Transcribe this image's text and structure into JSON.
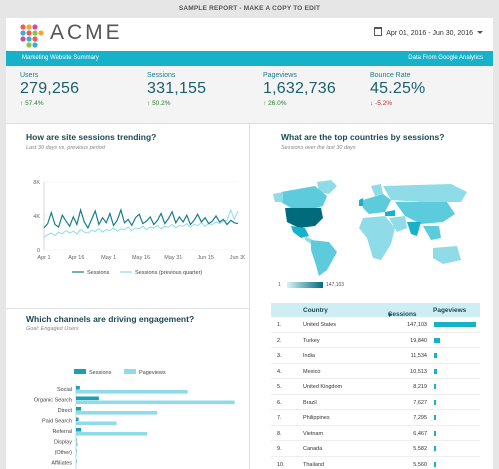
{
  "banner": "SAMPLE REPORT - MAKE A COPY TO EDIT",
  "header": {
    "logo_text": "ACME",
    "date_range": "Apr 01, 2016 - Jun 30, 2016"
  },
  "subheader": {
    "left": "Marketing Website Summary",
    "right": "Data From Google Analytics"
  },
  "kpis": [
    {
      "label": "Users",
      "value": "279,256",
      "change": "57.4%",
      "direction": "up"
    },
    {
      "label": "Sessions",
      "value": "331,155",
      "change": "50.2%",
      "direction": "up"
    },
    {
      "label": "Pageviews",
      "value": "1,632,736",
      "change": "26.0%",
      "direction": "up"
    },
    {
      "label": "Bounce Rate",
      "value": "45.25%",
      "change": "-5.2%",
      "direction": "down"
    }
  ],
  "colors": {
    "accent": "#17b2c9",
    "accent_light": "#8fdce8",
    "dark": "#1a4a55"
  },
  "sessions_trend": {
    "title": "How are site sessions trending?",
    "subtitle": "Last 30 days vs. previous period",
    "legend": [
      "Sessions",
      "Sessions (previous quarter)"
    ]
  },
  "countries": {
    "title": "What are the top countries by sessions?",
    "subtitle": "Sessions over the last 30 days",
    "scale_min": "1",
    "scale_max": "147,103"
  },
  "channels": {
    "title": "Which channels are driving engagement?",
    "subtitle": "Goal: Engaged Users",
    "legend": [
      "Sessions",
      "Pageviews"
    ]
  },
  "table": {
    "headers": [
      "Country",
      "Sessions",
      "Pageviews"
    ],
    "sort_indicator": "▾",
    "rows": [
      {
        "rank": "1.",
        "country": "United States",
        "sessions": "147,103",
        "pv": 147103
      },
      {
        "rank": "2.",
        "country": "Turkey",
        "sessions": "19,840",
        "pv": 19840
      },
      {
        "rank": "3.",
        "country": "India",
        "sessions": "11,534",
        "pv": 11534
      },
      {
        "rank": "4.",
        "country": "Mexico",
        "sessions": "10,513",
        "pv": 10513
      },
      {
        "rank": "5.",
        "country": "United Kingdom",
        "sessions": "8,219",
        "pv": 8219
      },
      {
        "rank": "6.",
        "country": "Brazil",
        "sessions": "7,627",
        "pv": 7627
      },
      {
        "rank": "7.",
        "country": "Philippines",
        "sessions": "7,295",
        "pv": 7295
      },
      {
        "rank": "8.",
        "country": "Vietnam",
        "sessions": "6,467",
        "pv": 6467
      },
      {
        "rank": "9.",
        "country": "Canada",
        "sessions": "5,582",
        "pv": 5582
      },
      {
        "rank": "10.",
        "country": "Thailand",
        "sessions": "5,560",
        "pv": 5560
      }
    ]
  },
  "chart_data": [
    {
      "type": "line",
      "title": "How are site sessions trending?",
      "x_ticks": [
        "Apr 1",
        "Apr 16",
        "May 1",
        "May 16",
        "May 31",
        "Jun 15",
        "Jun 30"
      ],
      "y_ticks": [
        "0",
        "4K",
        "8K"
      ],
      "ylim": [
        0,
        8000
      ],
      "series": [
        {
          "name": "Sessions",
          "values": [
            2600,
            3100,
            4400,
            3000,
            2700,
            4100,
            3400,
            2800,
            3900,
            3000,
            4700,
            3300,
            2600,
            3600,
            4600,
            3000,
            3800,
            3200,
            4300,
            2900,
            3500,
            4700,
            3200,
            3600,
            2900,
            3800,
            4200,
            3100,
            3400,
            3900,
            3000,
            3500,
            4300,
            3100,
            3700,
            4500,
            3200,
            3900,
            3300,
            4100,
            3000,
            3500,
            4200,
            3300,
            3800,
            3100,
            3400,
            4000,
            3300,
            3600,
            3000,
            3500,
            3200,
            3100
          ]
        },
        {
          "name": "Sessions (previous quarter)",
          "values": [
            1500,
            1800,
            2000,
            1700,
            2100,
            1900,
            2300,
            2000,
            2200,
            1900,
            2400,
            2100,
            2000,
            2300,
            2200,
            2500,
            2100,
            2400,
            2300,
            2600,
            2200,
            2500,
            2400,
            2700,
            2300,
            2600,
            2500,
            2800,
            2400,
            2700,
            2600,
            2900,
            2500,
            2800,
            2700,
            3000,
            2600,
            2900,
            2800,
            3100,
            2700,
            3000,
            2900,
            3200,
            2800,
            3100,
            3000,
            3300,
            3100,
            3400,
            3500,
            4700,
            3600,
            4600
          ]
        }
      ]
    },
    {
      "type": "bar",
      "title": "Which channels are driving engagement?",
      "categories": [
        "Social",
        "Organic Search",
        "Direct",
        "Paid Search",
        "Referral",
        "Display",
        "(Other)",
        "Affiliates"
      ],
      "series": [
        {
          "name": "Sessions",
          "values": [
            3,
            18,
            4,
            2,
            4,
            0.3,
            0.1,
            0.05
          ]
        },
        {
          "name": "Pageviews",
          "values": [
            88,
            125,
            64,
            32,
            56,
            1.5,
            0.5,
            0.2
          ]
        }
      ],
      "xlim": [
        0,
        130
      ]
    }
  ]
}
